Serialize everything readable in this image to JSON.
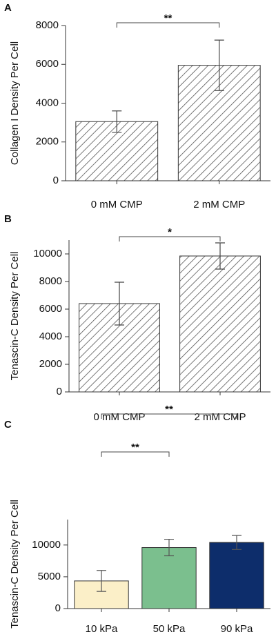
{
  "chart_data": [
    {
      "type": "bar",
      "panel_label": "A",
      "y_label": "Collagen I Density Per Cell",
      "categories": [
        "0 mM CMP",
        "2 mM CMP"
      ],
      "values": [
        3050,
        5950
      ],
      "errors": [
        550,
        1300
      ],
      "hatch": true,
      "color": "#555555",
      "ylim": [
        0,
        8000
      ],
      "yticks": [
        0,
        2000,
        4000,
        6000,
        8000
      ],
      "annotations": [
        {
          "pair": [
            0,
            1
          ],
          "label": "**"
        }
      ]
    },
    {
      "type": "bar",
      "panel_label": "B",
      "y_label": "Tenascin-C Density Per Cell",
      "categories": [
        "0 mM CMP",
        "2 mM CMP"
      ],
      "values": [
        6400,
        9850
      ],
      "errors": [
        1550,
        950
      ],
      "hatch": true,
      "color": "#555555",
      "ylim": [
        0,
        11000
      ],
      "yticks": [
        0,
        2000,
        4000,
        6000,
        8000,
        10000
      ],
      "annotations": [
        {
          "pair": [
            0,
            1
          ],
          "label": "*"
        }
      ]
    },
    {
      "type": "bar",
      "panel_label": "C",
      "y_label": "Tenascin-C Density Per Cell",
      "categories": [
        "10 kPa",
        "50 kPa",
        "90 kPa"
      ],
      "values": [
        4350,
        9600,
        10400
      ],
      "errors": [
        1650,
        1300,
        1100
      ],
      "hatch": false,
      "colors": [
        "#fbefc8",
        "#7bbf8e",
        "#0d2d6b"
      ],
      "ylim": [
        0,
        14000
      ],
      "yticks": [
        0,
        5000,
        10000
      ],
      "annotations": [
        {
          "pair": [
            0,
            1
          ],
          "label": "**"
        },
        {
          "pair": [
            0,
            2
          ],
          "label": "**"
        }
      ]
    }
  ]
}
